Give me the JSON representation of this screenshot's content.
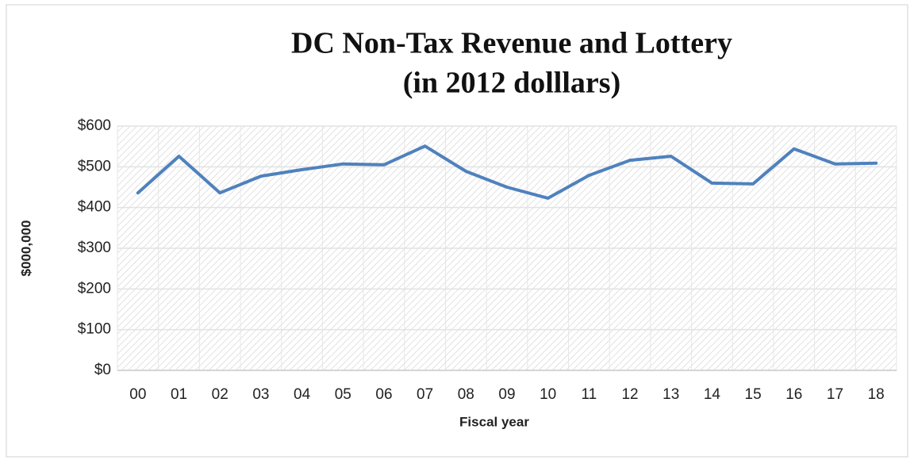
{
  "chart_data": {
    "type": "line",
    "title": [
      "DC Non-Tax Revenue and Lottery",
      "(in 2012 dolllars)"
    ],
    "x_label": "Fiscal year",
    "y_label": "$000,000",
    "categories": [
      "00",
      "01",
      "02",
      "03",
      "04",
      "05",
      "06",
      "07",
      "08",
      "09",
      "10",
      "11",
      "12",
      "13",
      "14",
      "15",
      "16",
      "17",
      "18"
    ],
    "series": [
      {
        "color": "#4f81bd",
        "values": [
          436,
          526,
          436,
          477,
          493,
          507,
          505,
          551,
          489,
          450,
          423,
          479,
          516,
          526,
          460,
          458,
          544,
          507,
          509
        ]
      }
    ],
    "ylim": [
      0,
      600
    ],
    "yticks": [
      {
        "value": 0,
        "label": "$0"
      },
      {
        "value": 100,
        "label": "$100"
      },
      {
        "value": 200,
        "label": "$200"
      },
      {
        "value": 300,
        "label": "$300"
      },
      {
        "value": 400,
        "label": "$400"
      },
      {
        "value": 500,
        "label": "$500"
      },
      {
        "value": 600,
        "label": "$600"
      }
    ],
    "grid": true
  }
}
